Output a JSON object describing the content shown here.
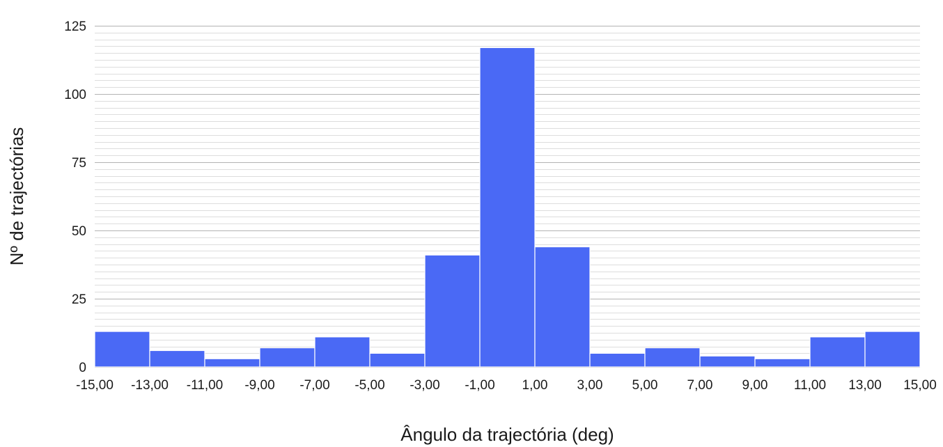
{
  "chart_data": {
    "type": "bar",
    "title": "",
    "xlabel": "Ângulo da trajectória (deg)",
    "ylabel": "Nº de trajectórias",
    "bin_edges": [
      -15,
      -13,
      -11,
      -9,
      -7,
      -5,
      -3,
      -1,
      1,
      3,
      5,
      7,
      9,
      11,
      13,
      15
    ],
    "x_tick_labels": [
      "-15,00",
      "-13,00",
      "-11,00",
      "-9,00",
      "-7,00",
      "-5,00",
      "-3,00",
      "-1,00",
      "1,00",
      "3,00",
      "5,00",
      "7,00",
      "9,00",
      "11,00",
      "13,00",
      "15,00"
    ],
    "values": [
      13,
      6,
      3,
      7,
      11,
      5,
      41,
      117,
      44,
      5,
      7,
      4,
      3,
      11,
      13
    ],
    "y_ticks": [
      0,
      25,
      50,
      75,
      100,
      125
    ],
    "ylim": [
      0,
      125
    ],
    "xlim": [
      -15,
      15
    ],
    "grid": true,
    "legend": "none",
    "colors": {
      "bar": "#4a69f5",
      "bar_edge": "#ffffff",
      "major_grid": "#b3b3b3",
      "minor_grid": "#dddddd"
    }
  }
}
